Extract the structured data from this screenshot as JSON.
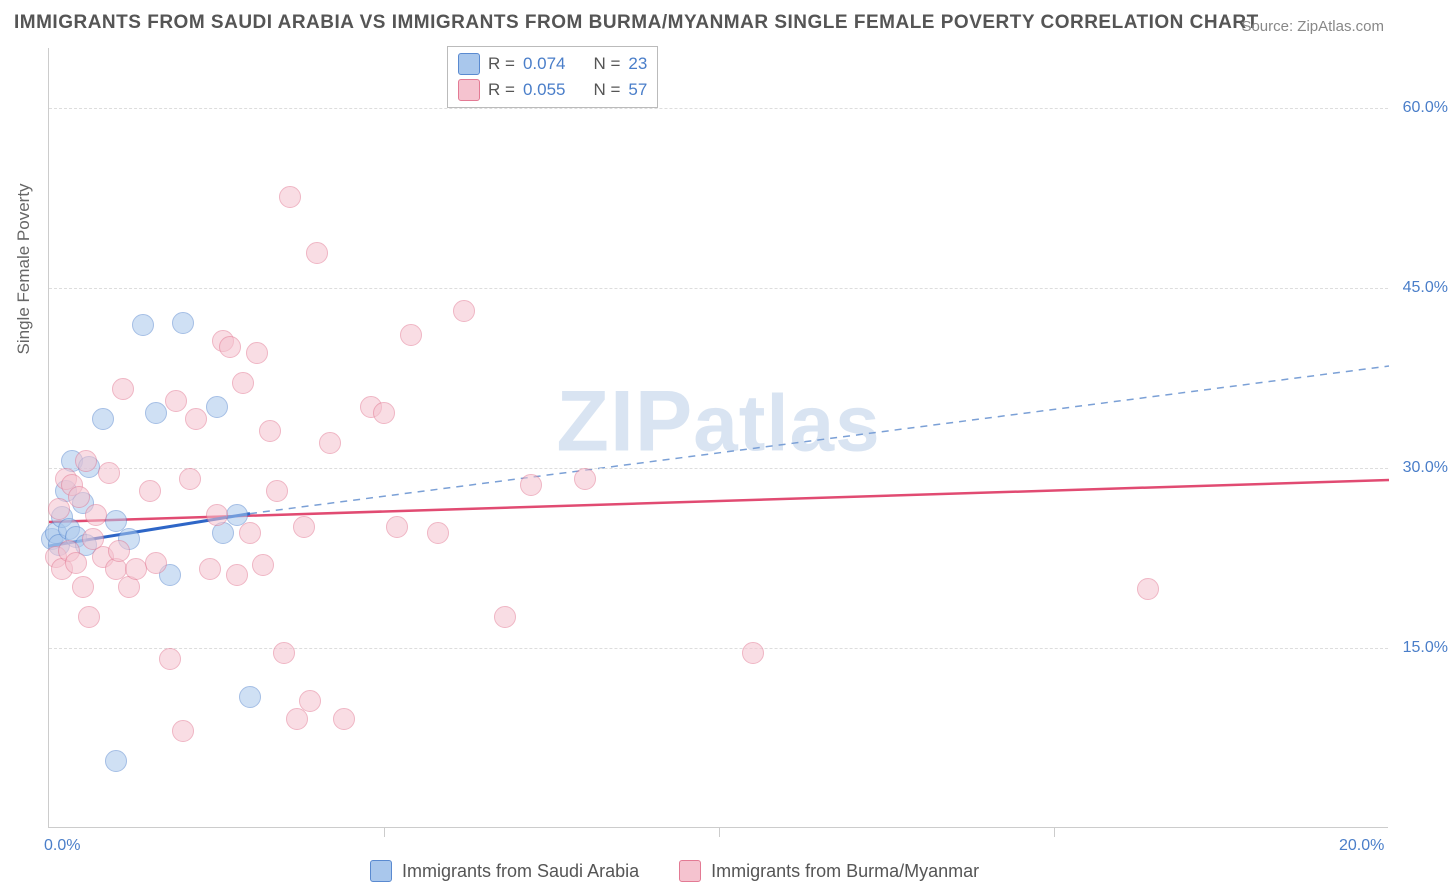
{
  "title": "IMMIGRANTS FROM SAUDI ARABIA VS IMMIGRANTS FROM BURMA/MYANMAR SINGLE FEMALE POVERTY CORRELATION CHART",
  "source": "Source: ZipAtlas.com",
  "y_axis_title": "Single Female Poverty",
  "watermark": "ZIPatlas",
  "chart": {
    "type": "scatter",
    "xlim": [
      0,
      20
    ],
    "ylim": [
      0,
      65
    ],
    "x_ticks": [
      0,
      5,
      10,
      15,
      20
    ],
    "x_tick_labels": [
      "0.0%",
      "",
      "",
      "",
      "20.0%"
    ],
    "y_ticks": [
      15,
      30,
      45,
      60
    ],
    "y_tick_labels": [
      "15.0%",
      "30.0%",
      "45.0%",
      "60.0%"
    ],
    "background_color": "#ffffff",
    "grid_color": "#dddddd",
    "axis_color": "#cccccc",
    "tick_label_color": "#4a7ec9",
    "marker_radius": 11,
    "marker_opacity": 0.55,
    "series": [
      {
        "name": "Immigrants from Saudi Arabia",
        "fill": "#a9c7ec",
        "stroke": "#5a8ad0",
        "R": "0.074",
        "N": "23",
        "points": [
          [
            0.05,
            24.0
          ],
          [
            0.1,
            24.5
          ],
          [
            0.15,
            23.5
          ],
          [
            0.2,
            25.8
          ],
          [
            0.3,
            24.8
          ],
          [
            0.25,
            28.0
          ],
          [
            0.35,
            30.5
          ],
          [
            0.4,
            24.2
          ],
          [
            0.5,
            27.0
          ],
          [
            0.6,
            30.0
          ],
          [
            0.8,
            34.0
          ],
          [
            1.0,
            25.5
          ],
          [
            1.2,
            24.0
          ],
          [
            1.4,
            41.8
          ],
          [
            1.6,
            34.5
          ],
          [
            1.8,
            21.0
          ],
          [
            2.0,
            42.0
          ],
          [
            2.6,
            24.5
          ],
          [
            2.8,
            26.0
          ],
          [
            2.5,
            35.0
          ],
          [
            3.0,
            10.8
          ],
          [
            1.0,
            5.5
          ],
          [
            0.55,
            23.5
          ]
        ],
        "fit_solid": {
          "x1": 0,
          "y1": 23.5,
          "x2": 3.0,
          "y2": 26.2
        },
        "fit_dashed": {
          "x1": 3.0,
          "y1": 26.2,
          "x2": 20,
          "y2": 38.5
        },
        "line_color": "#2e66c7"
      },
      {
        "name": "Immigrants from Burma/Myanmar",
        "fill": "#f5c3cf",
        "stroke": "#e37a94",
        "R": "0.055",
        "N": "57",
        "points": [
          [
            0.1,
            22.5
          ],
          [
            0.15,
            26.5
          ],
          [
            0.2,
            21.5
          ],
          [
            0.25,
            29.0
          ],
          [
            0.3,
            23.0
          ],
          [
            0.35,
            28.5
          ],
          [
            0.4,
            22.0
          ],
          [
            0.45,
            27.5
          ],
          [
            0.5,
            20.0
          ],
          [
            0.55,
            30.5
          ],
          [
            0.6,
            17.5
          ],
          [
            0.7,
            26.0
          ],
          [
            0.8,
            22.5
          ],
          [
            0.9,
            29.5
          ],
          [
            1.0,
            21.5
          ],
          [
            1.1,
            36.5
          ],
          [
            1.2,
            20.0
          ],
          [
            1.3,
            21.5
          ],
          [
            1.5,
            28.0
          ],
          [
            1.6,
            22.0
          ],
          [
            1.8,
            14.0
          ],
          [
            1.9,
            35.5
          ],
          [
            2.0,
            8.0
          ],
          [
            2.2,
            34.0
          ],
          [
            2.4,
            21.5
          ],
          [
            2.5,
            26.0
          ],
          [
            2.6,
            40.5
          ],
          [
            2.7,
            40.0
          ],
          [
            2.8,
            21.0
          ],
          [
            3.0,
            24.5
          ],
          [
            3.1,
            39.5
          ],
          [
            3.2,
            21.8
          ],
          [
            3.3,
            33.0
          ],
          [
            3.4,
            28.0
          ],
          [
            3.5,
            14.5
          ],
          [
            3.6,
            52.5
          ],
          [
            3.7,
            9.0
          ],
          [
            3.8,
            25.0
          ],
          [
            3.9,
            10.5
          ],
          [
            4.0,
            47.8
          ],
          [
            4.2,
            32.0
          ],
          [
            4.4,
            9.0
          ],
          [
            4.8,
            35.0
          ],
          [
            5.0,
            34.5
          ],
          [
            5.2,
            25.0
          ],
          [
            5.4,
            41.0
          ],
          [
            5.8,
            24.5
          ],
          [
            6.2,
            43.0
          ],
          [
            6.8,
            17.5
          ],
          [
            7.2,
            28.5
          ],
          [
            8.0,
            29.0
          ],
          [
            10.5,
            14.5
          ],
          [
            16.4,
            19.8
          ],
          [
            0.65,
            24.0
          ],
          [
            1.05,
            23.0
          ],
          [
            2.1,
            29.0
          ],
          [
            2.9,
            37.0
          ]
        ],
        "fit_solid": {
          "x1": 0,
          "y1": 25.5,
          "x2": 20,
          "y2": 29.0
        },
        "line_color": "#e14b72"
      }
    ]
  },
  "legend_top": {
    "rows": [
      {
        "swatch_fill": "#a9c7ec",
        "swatch_stroke": "#5a8ad0",
        "r_label": "R =",
        "r_val": "0.074",
        "n_label": "N =",
        "n_val": "23"
      },
      {
        "swatch_fill": "#f5c3cf",
        "swatch_stroke": "#e37a94",
        "r_label": "R =",
        "r_val": "0.055",
        "n_label": "N =",
        "n_val": "57"
      }
    ]
  },
  "legend_bottom": {
    "items": [
      {
        "swatch_fill": "#a9c7ec",
        "swatch_stroke": "#5a8ad0",
        "label": "Immigrants from Saudi Arabia"
      },
      {
        "swatch_fill": "#f5c3cf",
        "swatch_stroke": "#e37a94",
        "label": "Immigrants from Burma/Myanmar"
      }
    ]
  }
}
